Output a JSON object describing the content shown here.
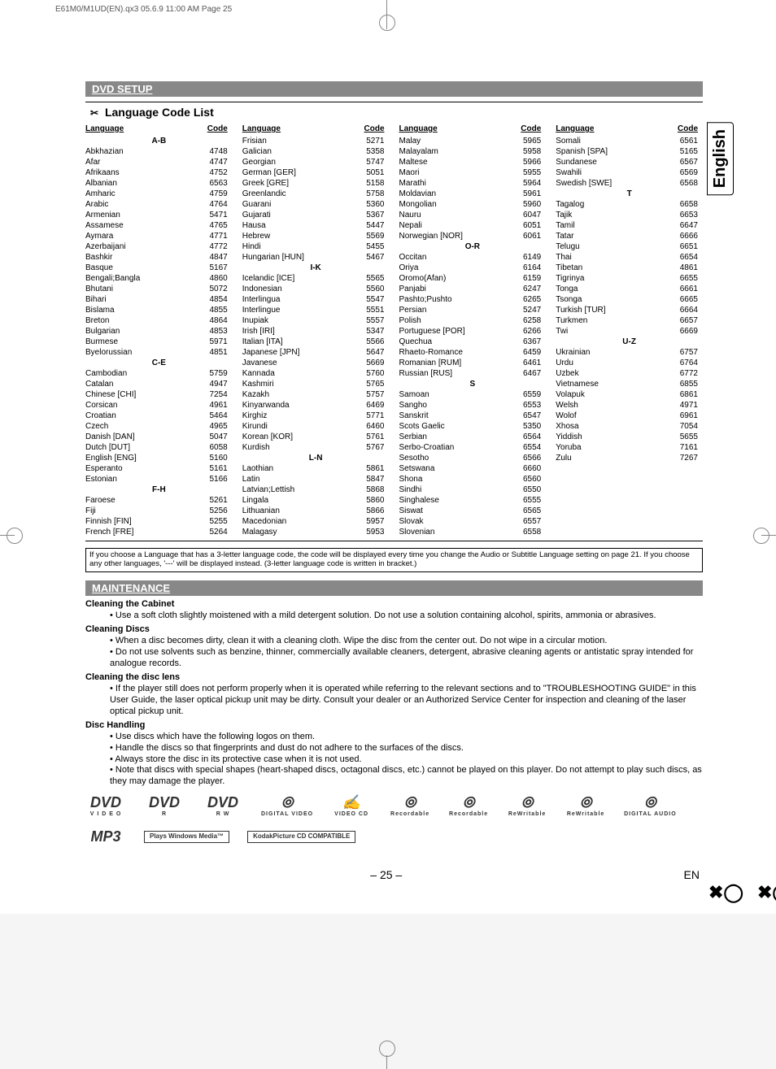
{
  "header": {
    "filename_line": "E61M0/M1UD(EN).qx3  05.6.9 11:00 AM  Page 25"
  },
  "side_tab": "English",
  "section_dvd_title": "DVD SETUP",
  "lang_list_title": "Language Code List",
  "col_headers": {
    "language": "Language",
    "code": "Code"
  },
  "lang_table": {
    "cols": [
      [
        {
          "group": "A-B"
        },
        {
          "l": "Abkhazian",
          "c": "4748"
        },
        {
          "l": "Afar",
          "c": "4747"
        },
        {
          "l": "Afrikaans",
          "c": "4752"
        },
        {
          "l": "Albanian",
          "c": "6563"
        },
        {
          "l": "Amharic",
          "c": "4759"
        },
        {
          "l": "Arabic",
          "c": "4764"
        },
        {
          "l": "Armenian",
          "c": "5471"
        },
        {
          "l": "Assamese",
          "c": "4765"
        },
        {
          "l": "Aymara",
          "c": "4771"
        },
        {
          "l": "Azerbaijani",
          "c": "4772"
        },
        {
          "l": "Bashkir",
          "c": "4847"
        },
        {
          "l": "Basque",
          "c": "5167"
        },
        {
          "l": "Bengali;Bangla",
          "c": "4860"
        },
        {
          "l": "Bhutani",
          "c": "5072"
        },
        {
          "l": "Bihari",
          "c": "4854"
        },
        {
          "l": "Bislama",
          "c": "4855"
        },
        {
          "l": "Breton",
          "c": "4864"
        },
        {
          "l": "Bulgarian",
          "c": "4853"
        },
        {
          "l": "Burmese",
          "c": "5971"
        },
        {
          "l": "Byelorussian",
          "c": "4851"
        },
        {
          "group": "C-E"
        },
        {
          "l": "Cambodian",
          "c": "5759"
        },
        {
          "l": "Catalan",
          "c": "4947"
        },
        {
          "l": "Chinese [CHI]",
          "c": "7254"
        },
        {
          "l": "Corsican",
          "c": "4961"
        },
        {
          "l": "Croatian",
          "c": "5464"
        },
        {
          "l": "Czech",
          "c": "4965"
        },
        {
          "l": "Danish [DAN]",
          "c": "5047"
        },
        {
          "l": "Dutch [DUT]",
          "c": "6058"
        },
        {
          "l": "English [ENG]",
          "c": "5160"
        },
        {
          "l": "Esperanto",
          "c": "5161"
        },
        {
          "l": "Estonian",
          "c": "5166"
        },
        {
          "group": "F-H"
        },
        {
          "l": "Faroese",
          "c": "5261"
        },
        {
          "l": "Fiji",
          "c": "5256"
        },
        {
          "l": "Finnish [FIN]",
          "c": "5255"
        },
        {
          "l": "French [FRE]",
          "c": "5264"
        }
      ],
      [
        {
          "l": "Frisian",
          "c": "5271"
        },
        {
          "l": "Galician",
          "c": "5358"
        },
        {
          "l": "Georgian",
          "c": "5747"
        },
        {
          "l": "German [GER]",
          "c": "5051"
        },
        {
          "l": "Greek [GRE]",
          "c": "5158"
        },
        {
          "l": "Greenlandic",
          "c": "5758"
        },
        {
          "l": "Guarani",
          "c": "5360"
        },
        {
          "l": "Gujarati",
          "c": "5367"
        },
        {
          "l": "Hausa",
          "c": "5447"
        },
        {
          "l": "Hebrew",
          "c": "5569"
        },
        {
          "l": "Hindi",
          "c": "5455"
        },
        {
          "l": "Hungarian [HUN]",
          "c": "5467"
        },
        {
          "group": "I-K"
        },
        {
          "l": "Icelandic [ICE]",
          "c": "5565"
        },
        {
          "l": "Indonesian",
          "c": "5560"
        },
        {
          "l": "Interlingua",
          "c": "5547"
        },
        {
          "l": "Interlingue",
          "c": "5551"
        },
        {
          "l": "Inupiak",
          "c": "5557"
        },
        {
          "l": "Irish [IRI]",
          "c": "5347"
        },
        {
          "l": "Italian [ITA]",
          "c": "5566"
        },
        {
          "l": "Japanese [JPN]",
          "c": "5647"
        },
        {
          "l": "Javanese",
          "c": "5669"
        },
        {
          "l": "Kannada",
          "c": "5760"
        },
        {
          "l": "Kashmiri",
          "c": "5765"
        },
        {
          "l": "Kazakh",
          "c": "5757"
        },
        {
          "l": "Kinyarwanda",
          "c": "6469"
        },
        {
          "l": "Kirghiz",
          "c": "5771"
        },
        {
          "l": "Kirundi",
          "c": "6460"
        },
        {
          "l": "Korean [KOR]",
          "c": "5761"
        },
        {
          "l": "Kurdish",
          "c": "5767"
        },
        {
          "group": "L-N"
        },
        {
          "l": "Laothian",
          "c": "5861"
        },
        {
          "l": "Latin",
          "c": "5847"
        },
        {
          "l": "Latvian;Lettish",
          "c": "5868"
        },
        {
          "l": "Lingala",
          "c": "5860"
        },
        {
          "l": "Lithuanian",
          "c": "5866"
        },
        {
          "l": "Macedonian",
          "c": "5957"
        },
        {
          "l": "Malagasy",
          "c": "5953"
        }
      ],
      [
        {
          "l": "Malay",
          "c": "5965"
        },
        {
          "l": "Malayalam",
          "c": "5958"
        },
        {
          "l": "Maltese",
          "c": "5966"
        },
        {
          "l": "Maori",
          "c": "5955"
        },
        {
          "l": "Marathi",
          "c": "5964"
        },
        {
          "l": "Moldavian",
          "c": "5961"
        },
        {
          "l": "Mongolian",
          "c": "5960"
        },
        {
          "l": "Nauru",
          "c": "6047"
        },
        {
          "l": "Nepali",
          "c": "6051"
        },
        {
          "l": "Norwegian [NOR]",
          "c": "6061"
        },
        {
          "group": "O-R"
        },
        {
          "l": "Occitan",
          "c": "6149"
        },
        {
          "l": "Oriya",
          "c": "6164"
        },
        {
          "l": "Oromo(Afan)",
          "c": "6159"
        },
        {
          "l": "Panjabi",
          "c": "6247"
        },
        {
          "l": "Pashto;Pushto",
          "c": "6265"
        },
        {
          "l": "Persian",
          "c": "5247"
        },
        {
          "l": "Polish",
          "c": "6258"
        },
        {
          "l": "Portuguese [POR]",
          "c": "6266"
        },
        {
          "l": "Quechua",
          "c": "6367"
        },
        {
          "l": "Rhaeto-Romance",
          "c": "6459"
        },
        {
          "l": "Romanian [RUM]",
          "c": "6461"
        },
        {
          "l": "Russian [RUS]",
          "c": "6467"
        },
        {
          "group": "S"
        },
        {
          "l": "Samoan",
          "c": "6559"
        },
        {
          "l": "Sangho",
          "c": "6553"
        },
        {
          "l": "Sanskrit",
          "c": "6547"
        },
        {
          "l": "Scots Gaelic",
          "c": "5350"
        },
        {
          "l": "Serbian",
          "c": "6564"
        },
        {
          "l": "Serbo-Croatian",
          "c": "6554"
        },
        {
          "l": "Sesotho",
          "c": "6566"
        },
        {
          "l": "Setswana",
          "c": "6660"
        },
        {
          "l": "Shona",
          "c": "6560"
        },
        {
          "l": "Sindhi",
          "c": "6550"
        },
        {
          "l": "Singhalese",
          "c": "6555"
        },
        {
          "l": "Siswat",
          "c": "6565"
        },
        {
          "l": "Slovak",
          "c": "6557"
        },
        {
          "l": "Slovenian",
          "c": "6558"
        }
      ],
      [
        {
          "l": "Somali",
          "c": "6561"
        },
        {
          "l": "Spanish [SPA]",
          "c": "5165"
        },
        {
          "l": "Sundanese",
          "c": "6567"
        },
        {
          "l": "Swahili",
          "c": "6569"
        },
        {
          "l": "Swedish [SWE]",
          "c": "6568"
        },
        {
          "group": "T"
        },
        {
          "l": "Tagalog",
          "c": "6658"
        },
        {
          "l": "Tajik",
          "c": "6653"
        },
        {
          "l": "Tamil",
          "c": "6647"
        },
        {
          "l": "Tatar",
          "c": "6666"
        },
        {
          "l": "Telugu",
          "c": "6651"
        },
        {
          "l": "Thai",
          "c": "6654"
        },
        {
          "l": "Tibetan",
          "c": "4861"
        },
        {
          "l": "Tigrinya",
          "c": "6655"
        },
        {
          "l": "Tonga",
          "c": "6661"
        },
        {
          "l": "Tsonga",
          "c": "6665"
        },
        {
          "l": "Turkish [TUR]",
          "c": "6664"
        },
        {
          "l": "Turkmen",
          "c": "6657"
        },
        {
          "l": "Twi",
          "c": "6669"
        },
        {
          "group": "U-Z"
        },
        {
          "l": "Ukrainian",
          "c": "6757"
        },
        {
          "l": "Urdu",
          "c": "6764"
        },
        {
          "l": "Uzbek",
          "c": "6772"
        },
        {
          "l": "Vietnamese",
          "c": "6855"
        },
        {
          "l": "Volapuk",
          "c": "6861"
        },
        {
          "l": "Welsh",
          "c": "4971"
        },
        {
          "l": "Wolof",
          "c": "6961"
        },
        {
          "l": "Xhosa",
          "c": "7054"
        },
        {
          "l": "Yiddish",
          "c": "5655"
        },
        {
          "l": "Yoruba",
          "c": "7161"
        },
        {
          "l": "Zulu",
          "c": "7267"
        }
      ]
    ]
  },
  "note": "If you choose a Language that has a 3-letter language code, the code will be displayed every time you change the Audio or Subtitle Language setting on page 21. If you choose any other languages, '---' will be displayed instead. (3-letter language code is written in bracket.)",
  "section_maint_title": "MAINTENANCE",
  "maintenance": {
    "h1": "Cleaning the Cabinet",
    "b1": "Use a soft cloth slightly moistened with a mild detergent solution. Do not use a solution containing alcohol, spirits, ammonia or abrasives.",
    "h2": "Cleaning Discs",
    "b2a": "When a disc becomes dirty, clean it with a cleaning cloth. Wipe the disc from the center out. Do not wipe in a circular motion.",
    "b2b": "Do not use solvents such as benzine, thinner, commercially available cleaners, detergent, abrasive cleaning agents or antistatic spray intended for analogue records.",
    "h3": "Cleaning the disc lens",
    "b3": "If the player still does not perform properly when it is operated while referring to the relevant sections and to \"TROUBLESHOOTING GUIDE\" in this User Guide, the laser optical pickup unit may be dirty. Consult your dealer or an Authorized Service Center for inspection and cleaning of the laser optical pickup unit.",
    "h4": "Disc Handling",
    "b4a": "Use discs which have the following logos on them.",
    "b4b": "Handle the discs so that fingerprints and dust do not adhere to the surfaces of the discs.",
    "b4c": "Always store the disc in its protective case when it is not used.",
    "b4d": "Note that discs with special shapes (heart-shaped discs, octagonal discs, etc.) cannot be played on this player. Do not attempt to play such discs, as they may damage the player."
  },
  "logos": [
    {
      "top": "DVD",
      "bottom": "V I D E O"
    },
    {
      "top": "DVD",
      "bottom": "R"
    },
    {
      "top": "DVD",
      "bottom": "R W"
    },
    {
      "top": "disc",
      "bottom": "DIGITAL VIDEO"
    },
    {
      "top": "✍",
      "bottom": "VIDEO CD"
    },
    {
      "top": "disc",
      "bottom": "Recordable"
    },
    {
      "top": "disc",
      "bottom": "Recordable"
    },
    {
      "top": "disc",
      "bottom": "ReWritable"
    },
    {
      "top": "disc",
      "bottom": "ReWritable"
    },
    {
      "top": "disc",
      "bottom": "DIGITAL AUDIO"
    },
    {
      "top": "MP3",
      "bottom": ""
    },
    {
      "top": "",
      "bottom": "Plays Windows Media™",
      "box": true
    },
    {
      "top": "Kodak",
      "bottom": "Picture CD COMPATIBLE",
      "box": true
    }
  ],
  "footer": {
    "page": "– 25 –",
    "lang": "EN"
  }
}
